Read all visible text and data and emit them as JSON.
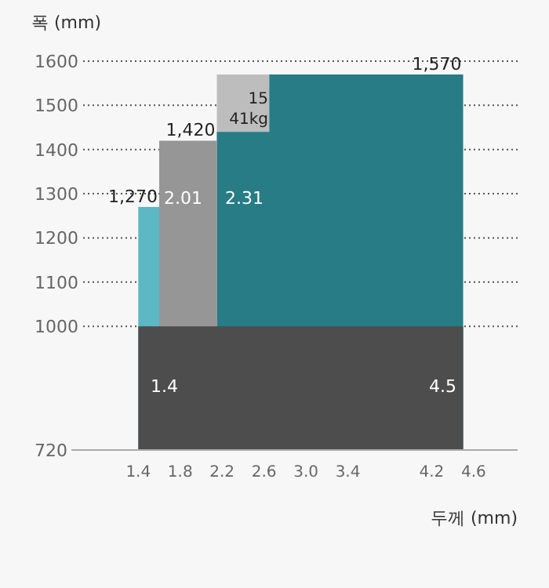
{
  "chart_data": {
    "type": "area",
    "ylabel": "폭 (mm)",
    "xlabel": "두께 (mm)",
    "xlim": [
      0.38,
      5.02
    ],
    "xticks": [
      1.4,
      1.8,
      2.2,
      2.6,
      {
        "value": 3.0,
        "label": "3.0"
      },
      3.4,
      4.2,
      4.6
    ],
    "ylim": [
      720,
      1600
    ],
    "yticks": [
      720,
      1000,
      1100,
      1200,
      1300,
      1400,
      1500,
      1600
    ],
    "grid": "y",
    "series": [
      {
        "color": "#bdbdbd",
        "x": [
          2.15,
          2.65
        ],
        "values": [
          1570,
          1570
        ]
      },
      {
        "color": "#277c86",
        "x": [
          2.15,
          2.65,
          2.65,
          4.5
        ],
        "values": [
          1440,
          1440,
          1570,
          1570
        ]
      },
      {
        "color": "#5bb8c4",
        "x": [
          1.4,
          1.6
        ],
        "values": [
          1270,
          1270
        ]
      },
      {
        "color": "#969696",
        "x": [
          1.6,
          2.15
        ],
        "values": [
          1420,
          1420
        ]
      },
      {
        "color": "#4d4d4d",
        "x": [
          1.4,
          4.5
        ],
        "values": [
          1000,
          1000
        ]
      }
    ],
    "annotations": [
      {
        "text": "1,270",
        "x": 1.6,
        "y": 1270
      },
      {
        "text": "1,420",
        "x": 2.15,
        "y": 1420
      },
      {
        "text": "1,570",
        "x": 4.5,
        "y": 1570
      },
      "2.01",
      "2.31",
      "15",
      "41kg",
      "1.4",
      "4.5"
    ]
  }
}
